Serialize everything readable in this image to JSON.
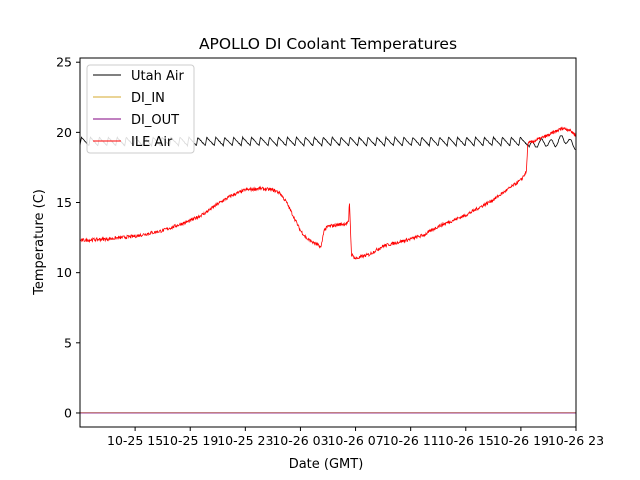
{
  "chart_data": {
    "type": "line",
    "title": "APOLLO DI Coolant Temperatures",
    "xlabel": "Date (GMT)",
    "ylabel": "Temperature (C)",
    "x_unit": "hours since 10-25 15:00 GMT",
    "xlim": [
      -4,
      32
    ],
    "ylim": [
      -1,
      25.3
    ],
    "xticks": [
      {
        "x": 0,
        "label": "10-25 15"
      },
      {
        "x": 4,
        "label": "10-25 19"
      },
      {
        "x": 8,
        "label": "10-25 23"
      },
      {
        "x": 12,
        "label": "10-26 03"
      },
      {
        "x": 16,
        "label": "10-26 07"
      },
      {
        "x": 20,
        "label": "10-26 11"
      },
      {
        "x": 24,
        "label": "10-26 15"
      },
      {
        "x": 28,
        "label": "10-26 19"
      },
      {
        "x": 32,
        "label": "10-26 23"
      }
    ],
    "yticks": [
      {
        "y": 0,
        "label": "0"
      },
      {
        "y": 5,
        "label": "5"
      },
      {
        "y": 10,
        "label": "10"
      },
      {
        "y": 15,
        "label": "15"
      },
      {
        "y": 20,
        "label": "20"
      },
      {
        "y": 25,
        "label": "25"
      }
    ],
    "grid": false,
    "legend_position": "top-left",
    "series": [
      {
        "name": "Utah Air",
        "color": "#000000",
        "style": "oscillating",
        "baseline": 19.35,
        "amplitude": 0.3,
        "period_hours": 0.65,
        "x_range": [
          -4,
          32
        ],
        "points": [
          [
            -4,
            19.35
          ],
          [
            28.5,
            19.35
          ],
          [
            28.6,
            19.0
          ],
          [
            29.5,
            19.3
          ],
          [
            30.5,
            19.2
          ],
          [
            31.0,
            19.6
          ],
          [
            32.0,
            19.0
          ]
        ]
      },
      {
        "name": "DI_IN",
        "color": "#d4a82c",
        "points": [
          [
            -4,
            0.02
          ],
          [
            32,
            0.02
          ]
        ]
      },
      {
        "name": "DI_OUT",
        "color": "#800080",
        "points": [
          [
            -4,
            0.0
          ],
          [
            32,
            0.0
          ]
        ]
      },
      {
        "name": "ILE Air",
        "color": "#ff0000",
        "noise": 0.12,
        "points": [
          [
            -4,
            12.3
          ],
          [
            -2,
            12.4
          ],
          [
            0,
            12.6
          ],
          [
            2,
            13.0
          ],
          [
            4,
            13.7
          ],
          [
            5,
            14.2
          ],
          [
            6,
            14.9
          ],
          [
            7,
            15.5
          ],
          [
            8,
            15.9
          ],
          [
            9,
            16.0
          ],
          [
            10,
            15.9
          ],
          [
            10.5,
            15.7
          ],
          [
            11,
            15.0
          ],
          [
            11.5,
            14.0
          ],
          [
            12,
            13.0
          ],
          [
            12.5,
            12.4
          ],
          [
            13.2,
            12.0
          ],
          [
            13.5,
            11.8
          ],
          [
            13.7,
            13.0
          ],
          [
            14,
            13.3
          ],
          [
            15.3,
            13.5
          ],
          [
            15.5,
            13.6
          ],
          [
            15.55,
            15.2
          ],
          [
            15.6,
            14.0
          ],
          [
            15.7,
            11.3
          ],
          [
            16,
            11.0
          ],
          [
            17,
            11.3
          ],
          [
            18,
            11.9
          ],
          [
            20,
            12.4
          ],
          [
            21,
            12.7
          ],
          [
            22,
            13.3
          ],
          [
            24,
            14.1
          ],
          [
            26,
            15.2
          ],
          [
            28,
            16.6
          ],
          [
            28.4,
            17.2
          ],
          [
            28.5,
            19.2
          ],
          [
            29,
            19.4
          ],
          [
            30,
            19.8
          ],
          [
            31,
            20.3
          ],
          [
            31.5,
            20.2
          ],
          [
            32,
            19.8
          ]
        ]
      }
    ]
  }
}
